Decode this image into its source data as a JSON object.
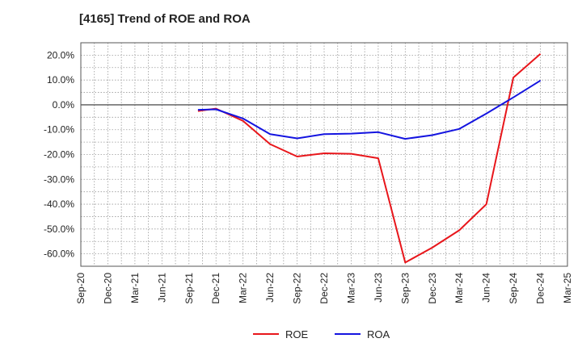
{
  "chart_data": {
    "type": "line",
    "title": "[4165]  Trend of ROE and ROA",
    "xlabel": "",
    "ylabel": "",
    "x_tick_labels": [
      "Sep-20",
      "Dec-20",
      "Mar-21",
      "Jun-21",
      "Sep-21",
      "Dec-21",
      "Mar-22",
      "Jun-22",
      "Sep-22",
      "Dec-22",
      "Mar-23",
      "Jun-23",
      "Sep-23",
      "Dec-23",
      "Mar-24",
      "Jun-24",
      "Sep-24",
      "Dec-24",
      "Mar-25"
    ],
    "y_tick_labels": [
      "20.0%",
      "10.0%",
      "0.0%",
      "-10.0%",
      "-20.0%",
      "-30.0%",
      "-40.0%",
      "-50.0%",
      "-60.0%"
    ],
    "ylim": [
      -65,
      25
    ],
    "y_ticks": [
      20,
      10,
      0,
      -10,
      -20,
      -30,
      -40,
      -50,
      -60
    ],
    "grid": true,
    "legend_position": "bottom-center",
    "x": [
      "Oct-21",
      "Dec-21",
      "Mar-22",
      "Jun-22",
      "Sep-22",
      "Dec-22",
      "Mar-23",
      "Jun-23",
      "Sep-23",
      "Dec-23",
      "Mar-24",
      "Jun-24",
      "Sep-24",
      "Dec-24"
    ],
    "series": [
      {
        "name": "ROE",
        "color": "#e8161b",
        "values": [
          -2.5,
          -1.5,
          -6.5,
          -15.8,
          -20.8,
          -19.5,
          -19.7,
          -21.5,
          -63.5,
          -57.5,
          -50.5,
          -40.0,
          11.0,
          20.5
        ]
      },
      {
        "name": "ROA",
        "color": "#1414e0",
        "values": [
          -2.0,
          -1.8,
          -5.5,
          -11.8,
          -13.5,
          -11.8,
          -11.6,
          -11.0,
          -13.7,
          -12.2,
          -9.7,
          -3.5,
          3.0,
          9.8
        ]
      }
    ]
  }
}
